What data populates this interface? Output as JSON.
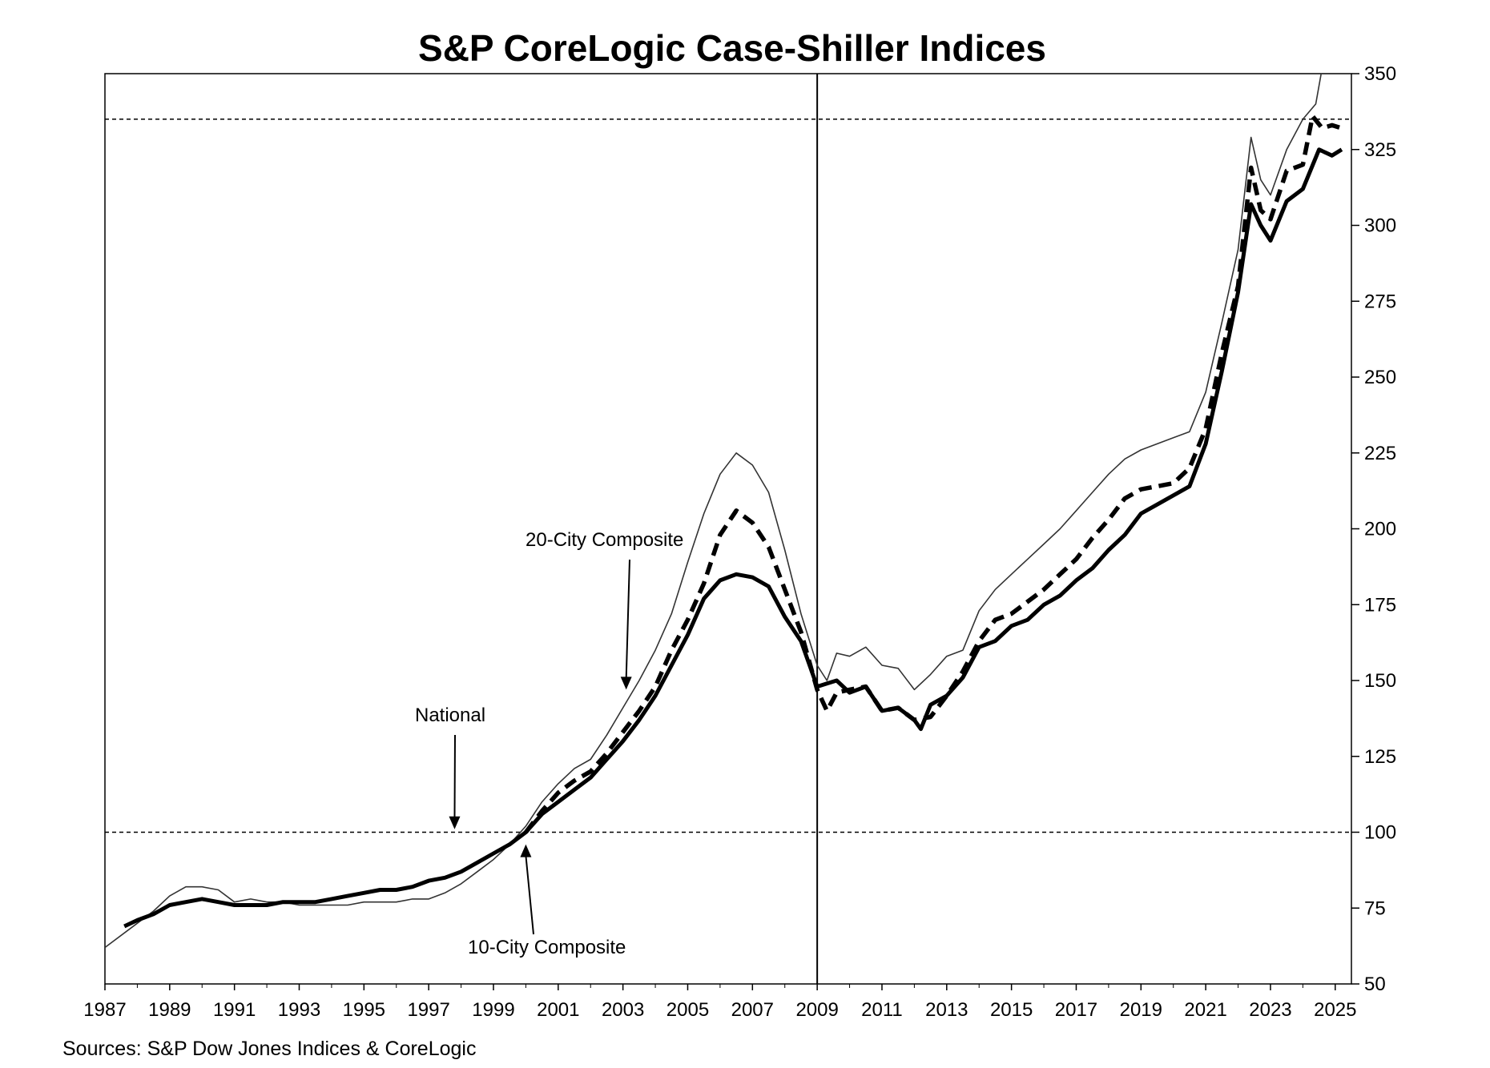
{
  "chart_data": {
    "type": "line",
    "title": "S&P CoreLogic Case-Shiller Indices",
    "source": "Sources:  S&P Dow Jones Indices & CoreLogic",
    "xlim": [
      1987,
      2025.5
    ],
    "ylim": [
      50,
      350
    ],
    "x_ticks": [
      "1987",
      "1989",
      "1991",
      "1993",
      "1995",
      "1997",
      "1999",
      "2001",
      "2003",
      "2005",
      "2007",
      "2009",
      "2011",
      "2013",
      "2015",
      "2017",
      "2019",
      "2021",
      "2023",
      "2025"
    ],
    "y_ticks": [
      "50",
      "75",
      "100",
      "125",
      "150",
      "175",
      "200",
      "225",
      "250",
      "275",
      "300",
      "325",
      "350"
    ],
    "y_axis_side": "right",
    "grid": false,
    "reference_lines": [
      {
        "axis": "y",
        "value": 100,
        "style": "dashed"
      },
      {
        "axis": "y",
        "value": 335,
        "style": "dashed"
      },
      {
        "axis": "x",
        "value": 2009,
        "style": "solid"
      }
    ],
    "annotations": [
      {
        "text": "20-City Composite",
        "target": [
          2003.1,
          147
        ]
      },
      {
        "text": "National",
        "target": [
          1997.8,
          101
        ]
      },
      {
        "text": "10-City Composite",
        "target": [
          2000.0,
          96
        ]
      }
    ],
    "series": [
      {
        "key": "ten",
        "style": "thin",
        "x": [
          1987.0,
          1988.0,
          1988.5,
          1989.0,
          1989.5,
          1990.0,
          1990.5,
          1991.0,
          1991.5,
          1992.0,
          1992.5,
          1993.0,
          1993.5,
          1994.0,
          1994.5,
          1995.0,
          1995.5,
          1996.0,
          1996.5,
          1997.0,
          1997.5,
          1998.0,
          1998.5,
          1999.0,
          1999.5,
          2000.0,
          2000.5,
          2001.0,
          2001.5,
          2002.0,
          2002.5,
          2003.0,
          2003.5,
          2004.0,
          2004.5,
          2005.0,
          2005.5,
          2006.0,
          2006.5,
          2007.0,
          2007.5,
          2008.0,
          2008.5,
          2009.0,
          2009.3,
          2009.6,
          2010.0,
          2010.5,
          2011.0,
          2011.5,
          2012.0,
          2012.5,
          2013.0,
          2013.5,
          2014.0,
          2014.5,
          2015.0,
          2015.5,
          2016.0,
          2016.5,
          2017.0,
          2017.5,
          2018.0,
          2018.5,
          2019.0,
          2019.5,
          2020.0,
          2020.5,
          2021.0,
          2021.5,
          2022.0,
          2022.4,
          2022.7,
          2023.0,
          2023.5,
          2024.0,
          2024.4,
          2024.6
        ],
        "values": [
          62,
          70,
          74,
          79,
          82,
          82,
          81,
          77,
          78,
          77,
          77,
          76,
          76,
          76,
          76,
          77,
          77,
          77,
          78,
          78,
          80,
          83,
          87,
          91,
          96,
          102,
          110,
          116,
          121,
          124,
          132,
          141,
          150,
          160,
          172,
          189,
          205,
          218,
          225,
          221,
          212,
          193,
          172,
          155,
          150,
          159,
          158,
          161,
          155,
          154,
          147,
          152,
          158,
          160,
          173,
          180,
          185,
          190,
          195,
          200,
          206,
          212,
          218,
          223,
          226,
          228,
          230,
          232,
          245,
          268,
          292,
          329,
          315,
          310,
          325,
          335,
          340,
          352
        ]
      },
      {
        "key": "twenty",
        "style": "dashed",
        "x": [
          2000.0,
          2000.5,
          2001.0,
          2001.5,
          2002.0,
          2002.5,
          2003.0,
          2003.5,
          2004.0,
          2004.5,
          2005.0,
          2005.5,
          2006.0,
          2006.5,
          2007.0,
          2007.5,
          2008.0,
          2008.5,
          2009.0,
          2009.3,
          2009.6,
          2010.0,
          2010.5,
          2011.0,
          2011.5,
          2012.0,
          2012.5,
          2013.0,
          2013.5,
          2014.0,
          2014.5,
          2015.0,
          2015.5,
          2016.0,
          2016.5,
          2017.0,
          2017.5,
          2018.0,
          2018.5,
          2019.0,
          2019.5,
          2020.0,
          2020.5,
          2021.0,
          2021.5,
          2022.0,
          2022.4,
          2022.7,
          2023.0,
          2023.5,
          2024.0,
          2024.3,
          2024.6,
          2024.9,
          2025.2
        ],
        "values": [
          100,
          107,
          113,
          117,
          120,
          126,
          133,
          140,
          148,
          160,
          170,
          182,
          198,
          206,
          202,
          194,
          180,
          166,
          147,
          140,
          146,
          147,
          148,
          140,
          141,
          137,
          138,
          145,
          153,
          163,
          170,
          172,
          176,
          180,
          185,
          190,
          197,
          203,
          210,
          213,
          214,
          215,
          220,
          233,
          258,
          280,
          319,
          305,
          302,
          318,
          320,
          336,
          332,
          333,
          332
        ]
      },
      {
        "key": "national",
        "style": "bold",
        "x": [
          1987.6,
          1988.0,
          1988.5,
          1989.0,
          1989.5,
          1990.0,
          1990.5,
          1991.0,
          1991.5,
          1992.0,
          1992.5,
          1993.0,
          1993.5,
          1994.0,
          1994.5,
          1995.0,
          1995.5,
          1996.0,
          1996.5,
          1997.0,
          1997.5,
          1998.0,
          1998.5,
          1999.0,
          1999.5,
          2000.0,
          2000.5,
          2001.0,
          2001.5,
          2002.0,
          2002.5,
          2003.0,
          2003.5,
          2004.0,
          2004.5,
          2005.0,
          2005.5,
          2006.0,
          2006.5,
          2007.0,
          2007.5,
          2008.0,
          2008.5,
          2009.0,
          2009.3,
          2009.6,
          2010.0,
          2010.5,
          2011.0,
          2011.5,
          2012.0,
          2012.2,
          2012.5,
          2013.0,
          2013.5,
          2014.0,
          2014.5,
          2015.0,
          2015.5,
          2016.0,
          2016.5,
          2017.0,
          2017.5,
          2018.0,
          2018.5,
          2019.0,
          2019.5,
          2020.0,
          2020.5,
          2021.0,
          2021.5,
          2022.0,
          2022.4,
          2022.7,
          2023.0,
          2023.5,
          2024.0,
          2024.5,
          2024.9,
          2025.2
        ],
        "values": [
          69,
          71,
          73,
          76,
          77,
          78,
          77,
          76,
          76,
          76,
          77,
          77,
          77,
          78,
          79,
          80,
          81,
          81,
          82,
          84,
          85,
          87,
          90,
          93,
          96,
          100,
          106,
          110,
          114,
          118,
          124,
          130,
          137,
          145,
          155,
          165,
          177,
          183,
          185,
          184,
          181,
          171,
          163,
          148,
          149,
          150,
          146,
          148,
          140,
          141,
          137,
          134,
          142,
          145,
          151,
          161,
          163,
          168,
          170,
          175,
          178,
          183,
          187,
          193,
          198,
          205,
          208,
          211,
          214,
          228,
          252,
          278,
          307,
          300,
          295,
          308,
          312,
          325,
          323,
          325
        ]
      }
    ]
  }
}
